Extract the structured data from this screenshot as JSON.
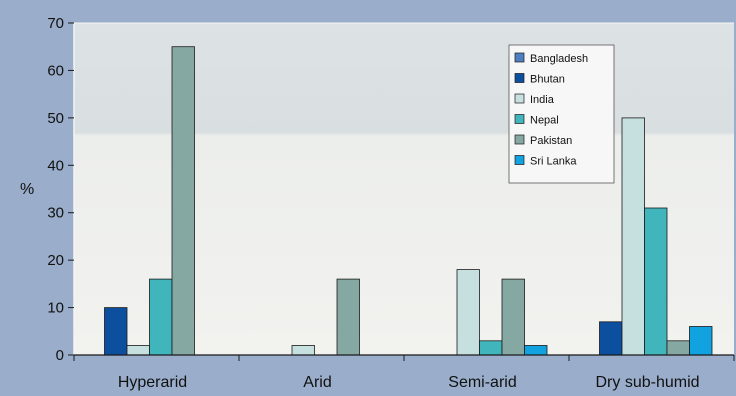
{
  "chart_data": {
    "type": "bar",
    "ylabel": "%",
    "ylim": [
      0,
      70
    ],
    "yticks": [
      0,
      10,
      20,
      30,
      40,
      50,
      60,
      70
    ],
    "grid": false,
    "legend_position": "top-right",
    "categories": [
      "Hyperarid",
      "Arid",
      "Semi-arid",
      "Dry sub-humid"
    ],
    "series": [
      {
        "name": "Bangladesh",
        "color": "#4f7fc0",
        "values": [
          0,
          0,
          0,
          0
        ]
      },
      {
        "name": "Bhutan",
        "color": "#0d4f9f",
        "values": [
          10,
          0,
          0,
          7
        ]
      },
      {
        "name": "India",
        "color": "#c6dfdf",
        "values": [
          2,
          2,
          18,
          50
        ]
      },
      {
        "name": "Nepal",
        "color": "#40b5bc",
        "values": [
          16,
          0,
          3,
          31
        ]
      },
      {
        "name": "Pakistan",
        "color": "#86a8a3",
        "values": [
          65,
          16,
          16,
          3
        ]
      },
      {
        "name": "Sri Lanka",
        "color": "#11a2e0",
        "values": [
          0,
          0,
          2,
          6
        ]
      }
    ]
  }
}
